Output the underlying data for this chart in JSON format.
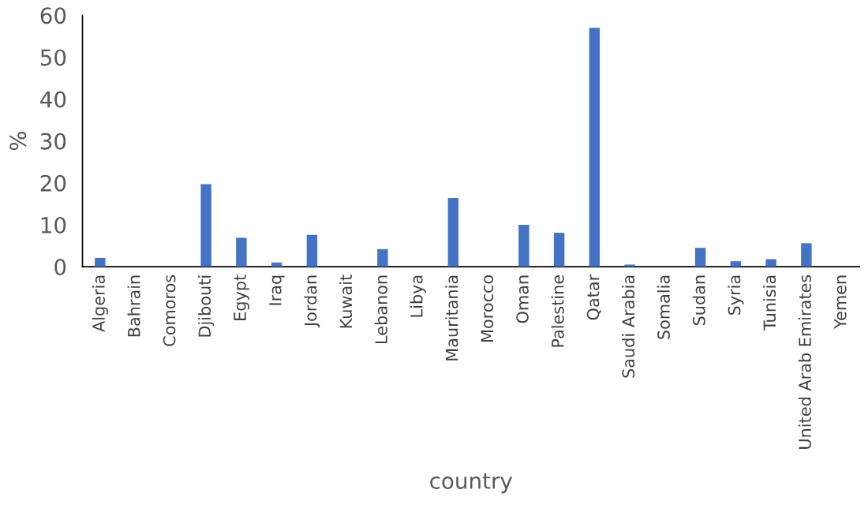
{
  "chart_data": {
    "type": "bar",
    "xlabel": "country",
    "ylabel": "%",
    "categories": [
      "Algeria",
      "Bahrain",
      "Comoros",
      "Djibouti",
      "Egypt",
      "Iraq",
      "Jordan",
      "Kuwait",
      "Lebanon",
      "Libya",
      "Mauritania",
      "Morocco",
      "Oman",
      "Palestine",
      "Qatar",
      "Saudi Arabia",
      "Somalia",
      "Sudan",
      "Syria",
      "Tunisia",
      "United Arab Emirates",
      "Yemen"
    ],
    "values": [
      2.1,
      null,
      null,
      19.7,
      6.9,
      1.0,
      7.6,
      null,
      4.2,
      null,
      16.4,
      null,
      10.0,
      8.1,
      57,
      0.5,
      null,
      4.5,
      1.3,
      1.8,
      5.6,
      null
    ],
    "color": "#4472c4",
    "ylim": [
      0,
      60
    ],
    "yticks": [
      0,
      10,
      20,
      30,
      40,
      50,
      60
    ],
    "grid": false,
    "legend": false
  }
}
